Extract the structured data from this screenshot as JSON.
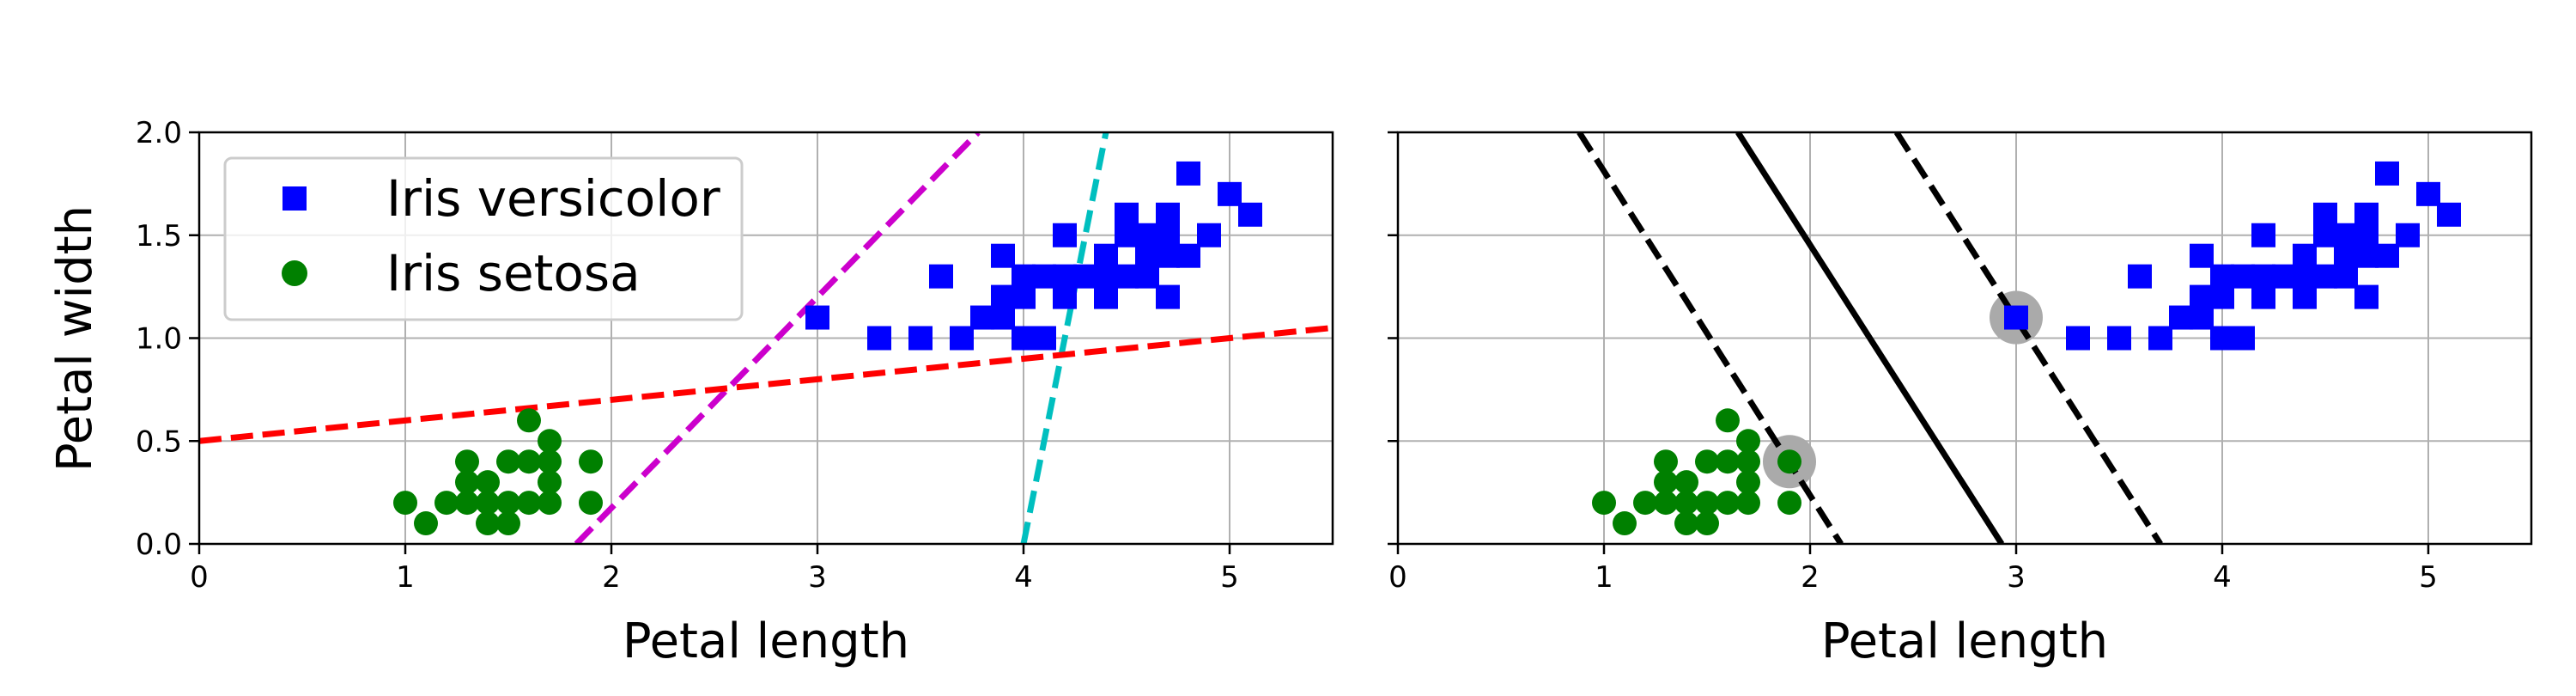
{
  "chart_data": [
    {
      "type": "scatter",
      "xlabel": "Petal length",
      "ylabel": "Petal width",
      "xlim": [
        0,
        5.5
      ],
      "ylim": [
        0,
        2.0
      ],
      "xticks": [
        "0",
        "1",
        "2",
        "3",
        "4",
        "5"
      ],
      "yticks": [
        "0.0",
        "0.5",
        "1.0",
        "1.5",
        "2.0"
      ],
      "grid": true,
      "legend_position": "top-left",
      "legend": [
        "Iris versicolor",
        "Iris setosa"
      ],
      "series": [
        {
          "name": "Iris versicolor",
          "marker": "square",
          "color": "#0000ff",
          "points": [
            [
              3.0,
              1.1
            ],
            [
              3.3,
              1.0
            ],
            [
              3.5,
              1.0
            ],
            [
              3.6,
              1.3
            ],
            [
              3.7,
              1.0
            ],
            [
              3.8,
              1.1
            ],
            [
              3.9,
              1.1
            ],
            [
              3.9,
              1.2
            ],
            [
              3.9,
              1.4
            ],
            [
              4.0,
              1.0
            ],
            [
              4.0,
              1.2
            ],
            [
              4.0,
              1.3
            ],
            [
              4.1,
              1.0
            ],
            [
              4.1,
              1.3
            ],
            [
              4.2,
              1.2
            ],
            [
              4.2,
              1.3
            ],
            [
              4.2,
              1.5
            ],
            [
              4.3,
              1.3
            ],
            [
              4.4,
              1.2
            ],
            [
              4.4,
              1.3
            ],
            [
              4.4,
              1.4
            ],
            [
              4.5,
              1.3
            ],
            [
              4.5,
              1.5
            ],
            [
              4.5,
              1.6
            ],
            [
              4.6,
              1.3
            ],
            [
              4.6,
              1.4
            ],
            [
              4.6,
              1.5
            ],
            [
              4.7,
              1.2
            ],
            [
              4.7,
              1.4
            ],
            [
              4.7,
              1.5
            ],
            [
              4.7,
              1.6
            ],
            [
              4.8,
              1.4
            ],
            [
              4.8,
              1.8
            ],
            [
              4.9,
              1.5
            ],
            [
              5.0,
              1.7
            ],
            [
              5.1,
              1.6
            ]
          ]
        },
        {
          "name": "Iris setosa",
          "marker": "circle",
          "color": "#008000",
          "points": [
            [
              1.0,
              0.2
            ],
            [
              1.1,
              0.1
            ],
            [
              1.2,
              0.2
            ],
            [
              1.3,
              0.2
            ],
            [
              1.3,
              0.3
            ],
            [
              1.3,
              0.4
            ],
            [
              1.4,
              0.1
            ],
            [
              1.4,
              0.2
            ],
            [
              1.4,
              0.3
            ],
            [
              1.5,
              0.1
            ],
            [
              1.5,
              0.2
            ],
            [
              1.5,
              0.4
            ],
            [
              1.6,
              0.2
            ],
            [
              1.6,
              0.4
            ],
            [
              1.6,
              0.6
            ],
            [
              1.7,
              0.2
            ],
            [
              1.7,
              0.3
            ],
            [
              1.7,
              0.4
            ],
            [
              1.7,
              0.5
            ],
            [
              1.9,
              0.2
            ],
            [
              1.9,
              0.4
            ]
          ]
        }
      ],
      "lines": [
        {
          "style": "dashed",
          "color": "#cc00cc",
          "from": [
            1.83,
            0.0
          ],
          "to": [
            3.78,
            2.0
          ]
        },
        {
          "style": "dashed",
          "color": "#00bfbf",
          "from": [
            4.0,
            0.0
          ],
          "to": [
            4.4,
            2.0
          ]
        },
        {
          "style": "dashed",
          "color": "#ff0000",
          "from": [
            0.0,
            0.5
          ],
          "to": [
            5.5,
            1.05
          ]
        }
      ]
    },
    {
      "type": "scatter",
      "xlabel": "Petal length",
      "ylabel": "",
      "xlim": [
        0,
        5.5
      ],
      "ylim": [
        0,
        2.0
      ],
      "xticks": [
        "0",
        "1",
        "2",
        "3",
        "4",
        "5"
      ],
      "grid": true,
      "series": [
        {
          "name": "Iris versicolor",
          "marker": "square",
          "color": "#0000ff",
          "points": [
            [
              3.0,
              1.1
            ],
            [
              3.3,
              1.0
            ],
            [
              3.5,
              1.0
            ],
            [
              3.6,
              1.3
            ],
            [
              3.7,
              1.0
            ],
            [
              3.8,
              1.1
            ],
            [
              3.9,
              1.1
            ],
            [
              3.9,
              1.2
            ],
            [
              3.9,
              1.4
            ],
            [
              4.0,
              1.0
            ],
            [
              4.0,
              1.2
            ],
            [
              4.0,
              1.3
            ],
            [
              4.1,
              1.0
            ],
            [
              4.1,
              1.3
            ],
            [
              4.2,
              1.2
            ],
            [
              4.2,
              1.3
            ],
            [
              4.2,
              1.5
            ],
            [
              4.3,
              1.3
            ],
            [
              4.4,
              1.2
            ],
            [
              4.4,
              1.3
            ],
            [
              4.4,
              1.4
            ],
            [
              4.5,
              1.3
            ],
            [
              4.5,
              1.5
            ],
            [
              4.5,
              1.6
            ],
            [
              4.6,
              1.3
            ],
            [
              4.6,
              1.4
            ],
            [
              4.6,
              1.5
            ],
            [
              4.7,
              1.2
            ],
            [
              4.7,
              1.4
            ],
            [
              4.7,
              1.5
            ],
            [
              4.7,
              1.6
            ],
            [
              4.8,
              1.4
            ],
            [
              4.8,
              1.8
            ],
            [
              4.9,
              1.5
            ],
            [
              5.0,
              1.7
            ],
            [
              5.1,
              1.6
            ]
          ]
        },
        {
          "name": "Iris setosa",
          "marker": "circle",
          "color": "#008000",
          "points": [
            [
              1.0,
              0.2
            ],
            [
              1.1,
              0.1
            ],
            [
              1.2,
              0.2
            ],
            [
              1.3,
              0.2
            ],
            [
              1.3,
              0.3
            ],
            [
              1.3,
              0.4
            ],
            [
              1.4,
              0.1
            ],
            [
              1.4,
              0.2
            ],
            [
              1.4,
              0.3
            ],
            [
              1.5,
              0.1
            ],
            [
              1.5,
              0.2
            ],
            [
              1.5,
              0.4
            ],
            [
              1.6,
              0.2
            ],
            [
              1.6,
              0.4
            ],
            [
              1.6,
              0.6
            ],
            [
              1.7,
              0.2
            ],
            [
              1.7,
              0.3
            ],
            [
              1.7,
              0.4
            ],
            [
              1.7,
              0.5
            ],
            [
              1.9,
              0.2
            ],
            [
              1.9,
              0.4
            ]
          ]
        }
      ],
      "support_vectors": [
        [
          1.9,
          0.4
        ],
        [
          3.0,
          1.1
        ]
      ],
      "support_vector_color": "#aaaaaa",
      "lines": [
        {
          "style": "solid",
          "color": "#000000",
          "from": [
            1.65,
            2.0
          ],
          "to": [
            2.93,
            0.0
          ]
        },
        {
          "style": "dashed",
          "color": "#000000",
          "from": [
            0.88,
            2.0
          ],
          "to": [
            2.15,
            0.0
          ]
        },
        {
          "style": "dashed",
          "color": "#000000",
          "from": [
            2.42,
            2.0
          ],
          "to": [
            3.7,
            0.0
          ]
        }
      ]
    }
  ]
}
